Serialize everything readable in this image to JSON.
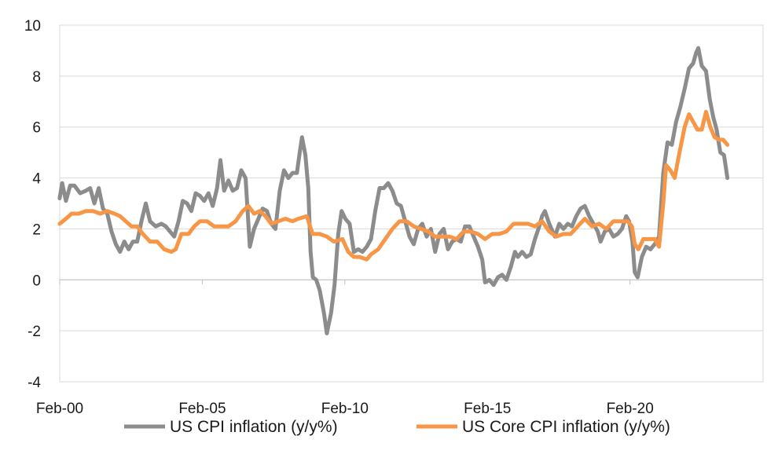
{
  "chart_data": {
    "type": "line",
    "title": "",
    "xlabel": "",
    "ylabel": "",
    "ylim": [
      -4,
      10
    ],
    "yticks": [
      -4,
      -2,
      0,
      2,
      4,
      6,
      8,
      10
    ],
    "ytick_labels": [
      "-4",
      "-2",
      "0",
      "2",
      "4",
      "6",
      "8",
      "10"
    ],
    "xlim": [
      2000.0833,
      2024.75
    ],
    "xticks": [
      {
        "label": "Feb-00",
        "x": 2000.0833
      },
      {
        "label": "Feb-05",
        "x": 2005.0833
      },
      {
        "label": "Feb-10",
        "x": 2010.0833
      },
      {
        "label": "Feb-15",
        "x": 2015.0833
      },
      {
        "label": "Feb-20",
        "x": 2020.0833
      }
    ],
    "grid": "horizontal",
    "legend_position": "bottom",
    "series": [
      {
        "name": "US CPI inflation (y/y%)",
        "color": "#8C8C8C",
        "points": [
          [
            2000.08,
            3.2
          ],
          [
            2000.17,
            3.8
          ],
          [
            2000.3,
            3.1
          ],
          [
            2000.45,
            3.7
          ],
          [
            2000.6,
            3.7
          ],
          [
            2000.8,
            3.4
          ],
          [
            2001.0,
            3.5
          ],
          [
            2001.15,
            3.6
          ],
          [
            2001.3,
            3.0
          ],
          [
            2001.45,
            3.6
          ],
          [
            2001.6,
            2.8
          ],
          [
            2001.75,
            2.6
          ],
          [
            2001.9,
            1.9
          ],
          [
            2002.05,
            1.4
          ],
          [
            2002.2,
            1.1
          ],
          [
            2002.35,
            1.5
          ],
          [
            2002.5,
            1.2
          ],
          [
            2002.65,
            1.5
          ],
          [
            2002.8,
            1.5
          ],
          [
            2002.95,
            2.3
          ],
          [
            2003.1,
            3.0
          ],
          [
            2003.25,
            2.3
          ],
          [
            2003.45,
            2.1
          ],
          [
            2003.65,
            2.2
          ],
          [
            2003.8,
            2.1
          ],
          [
            2003.95,
            1.9
          ],
          [
            2004.1,
            1.7
          ],
          [
            2004.25,
            2.3
          ],
          [
            2004.4,
            3.1
          ],
          [
            2004.55,
            3.0
          ],
          [
            2004.7,
            2.7
          ],
          [
            2004.85,
            3.4
          ],
          [
            2005.0,
            3.3
          ],
          [
            2005.15,
            3.1
          ],
          [
            2005.3,
            3.4
          ],
          [
            2005.45,
            2.9
          ],
          [
            2005.6,
            3.6
          ],
          [
            2005.72,
            4.7
          ],
          [
            2005.85,
            3.5
          ],
          [
            2006.0,
            3.9
          ],
          [
            2006.15,
            3.5
          ],
          [
            2006.3,
            3.6
          ],
          [
            2006.45,
            4.3
          ],
          [
            2006.6,
            4.0
          ],
          [
            2006.75,
            1.3
          ],
          [
            2006.9,
            2.0
          ],
          [
            2007.05,
            2.4
          ],
          [
            2007.2,
            2.8
          ],
          [
            2007.35,
            2.7
          ],
          [
            2007.5,
            2.2
          ],
          [
            2007.65,
            2.0
          ],
          [
            2007.8,
            3.5
          ],
          [
            2007.95,
            4.3
          ],
          [
            2008.1,
            4.0
          ],
          [
            2008.25,
            4.2
          ],
          [
            2008.4,
            4.2
          ],
          [
            2008.5,
            5.0
          ],
          [
            2008.58,
            5.6
          ],
          [
            2008.7,
            4.9
          ],
          [
            2008.8,
            3.6
          ],
          [
            2008.88,
            1.1
          ],
          [
            2008.96,
            0.1
          ],
          [
            2009.08,
            0.0
          ],
          [
            2009.2,
            -0.4
          ],
          [
            2009.35,
            -1.3
          ],
          [
            2009.45,
            -2.1
          ],
          [
            2009.6,
            -1.3
          ],
          [
            2009.72,
            -0.2
          ],
          [
            2009.85,
            1.8
          ],
          [
            2009.97,
            2.7
          ],
          [
            2010.1,
            2.4
          ],
          [
            2010.25,
            2.2
          ],
          [
            2010.4,
            1.1
          ],
          [
            2010.55,
            1.2
          ],
          [
            2010.7,
            1.1
          ],
          [
            2010.85,
            1.3
          ],
          [
            2011.0,
            1.6
          ],
          [
            2011.15,
            2.7
          ],
          [
            2011.3,
            3.6
          ],
          [
            2011.45,
            3.6
          ],
          [
            2011.6,
            3.8
          ],
          [
            2011.75,
            3.5
          ],
          [
            2011.9,
            3.0
          ],
          [
            2012.05,
            2.9
          ],
          [
            2012.2,
            2.3
          ],
          [
            2012.35,
            1.7
          ],
          [
            2012.5,
            1.4
          ],
          [
            2012.65,
            2.0
          ],
          [
            2012.8,
            2.2
          ],
          [
            2012.95,
            1.7
          ],
          [
            2013.1,
            2.0
          ],
          [
            2013.25,
            1.1
          ],
          [
            2013.4,
            1.8
          ],
          [
            2013.55,
            2.0
          ],
          [
            2013.7,
            1.2
          ],
          [
            2013.85,
            1.5
          ],
          [
            2014.0,
            1.6
          ],
          [
            2014.15,
            1.5
          ],
          [
            2014.3,
            2.1
          ],
          [
            2014.45,
            2.1
          ],
          [
            2014.6,
            1.7
          ],
          [
            2014.75,
            1.3
          ],
          [
            2014.9,
            0.8
          ],
          [
            2015.0,
            -0.1
          ],
          [
            2015.15,
            0.0
          ],
          [
            2015.3,
            -0.2
          ],
          [
            2015.45,
            0.1
          ],
          [
            2015.6,
            0.2
          ],
          [
            2015.75,
            0.0
          ],
          [
            2015.9,
            0.5
          ],
          [
            2016.05,
            1.1
          ],
          [
            2016.15,
            0.9
          ],
          [
            2016.3,
            1.1
          ],
          [
            2016.45,
            0.9
          ],
          [
            2016.6,
            1.0
          ],
          [
            2016.75,
            1.6
          ],
          [
            2016.9,
            2.1
          ],
          [
            2017.0,
            2.5
          ],
          [
            2017.1,
            2.7
          ],
          [
            2017.25,
            2.2
          ],
          [
            2017.45,
            1.7
          ],
          [
            2017.6,
            2.2
          ],
          [
            2017.75,
            2.0
          ],
          [
            2017.9,
            2.2
          ],
          [
            2018.05,
            2.1
          ],
          [
            2018.2,
            2.5
          ],
          [
            2018.35,
            2.8
          ],
          [
            2018.5,
            2.9
          ],
          [
            2018.65,
            2.5
          ],
          [
            2018.8,
            2.2
          ],
          [
            2018.95,
            1.9
          ],
          [
            2019.05,
            1.5
          ],
          [
            2019.2,
            1.9
          ],
          [
            2019.35,
            2.0
          ],
          [
            2019.5,
            1.7
          ],
          [
            2019.65,
            1.8
          ],
          [
            2019.8,
            2.0
          ],
          [
            2019.95,
            2.5
          ],
          [
            2020.05,
            2.3
          ],
          [
            2020.17,
            1.5
          ],
          [
            2020.25,
            0.3
          ],
          [
            2020.35,
            0.1
          ],
          [
            2020.5,
            0.9
          ],
          [
            2020.65,
            1.3
          ],
          [
            2020.8,
            1.2
          ],
          [
            2020.95,
            1.4
          ],
          [
            2021.1,
            1.7
          ],
          [
            2021.25,
            4.2
          ],
          [
            2021.4,
            5.4
          ],
          [
            2021.55,
            5.3
          ],
          [
            2021.7,
            6.2
          ],
          [
            2021.85,
            6.8
          ],
          [
            2022.0,
            7.5
          ],
          [
            2022.15,
            8.3
          ],
          [
            2022.3,
            8.5
          ],
          [
            2022.4,
            8.9
          ],
          [
            2022.48,
            9.1
          ],
          [
            2022.6,
            8.4
          ],
          [
            2022.75,
            8.2
          ],
          [
            2022.88,
            7.1
          ],
          [
            2023.0,
            6.4
          ],
          [
            2023.12,
            5.9
          ],
          [
            2023.25,
            5.0
          ],
          [
            2023.38,
            4.9
          ],
          [
            2023.5,
            4.0
          ]
        ]
      },
      {
        "name": "US Core CPI inflation (y/y%)",
        "color": "#F79646",
        "points": [
          [
            2000.08,
            2.2
          ],
          [
            2000.3,
            2.4
          ],
          [
            2000.5,
            2.6
          ],
          [
            2000.75,
            2.6
          ],
          [
            2001.0,
            2.7
          ],
          [
            2001.25,
            2.7
          ],
          [
            2001.5,
            2.6
          ],
          [
            2001.75,
            2.7
          ],
          [
            2002.0,
            2.6
          ],
          [
            2002.2,
            2.5
          ],
          [
            2002.4,
            2.3
          ],
          [
            2002.6,
            2.1
          ],
          [
            2002.8,
            2.1
          ],
          [
            2003.0,
            1.8
          ],
          [
            2003.25,
            1.5
          ],
          [
            2003.5,
            1.5
          ],
          [
            2003.75,
            1.2
          ],
          [
            2004.0,
            1.1
          ],
          [
            2004.15,
            1.2
          ],
          [
            2004.35,
            1.8
          ],
          [
            2004.6,
            1.8
          ],
          [
            2004.8,
            2.1
          ],
          [
            2005.0,
            2.3
          ],
          [
            2005.25,
            2.3
          ],
          [
            2005.5,
            2.1
          ],
          [
            2005.75,
            2.1
          ],
          [
            2006.0,
            2.1
          ],
          [
            2006.25,
            2.3
          ],
          [
            2006.5,
            2.7
          ],
          [
            2006.7,
            2.9
          ],
          [
            2006.9,
            2.6
          ],
          [
            2007.1,
            2.7
          ],
          [
            2007.3,
            2.5
          ],
          [
            2007.5,
            2.2
          ],
          [
            2007.75,
            2.3
          ],
          [
            2008.0,
            2.4
          ],
          [
            2008.25,
            2.3
          ],
          [
            2008.45,
            2.4
          ],
          [
            2008.75,
            2.5
          ],
          [
            2008.95,
            1.8
          ],
          [
            2009.2,
            1.8
          ],
          [
            2009.45,
            1.7
          ],
          [
            2009.7,
            1.5
          ],
          [
            2010.0,
            1.6
          ],
          [
            2010.2,
            1.1
          ],
          [
            2010.4,
            0.9
          ],
          [
            2010.6,
            0.9
          ],
          [
            2010.85,
            0.8
          ],
          [
            2011.0,
            1.0
          ],
          [
            2011.25,
            1.2
          ],
          [
            2011.5,
            1.6
          ],
          [
            2011.75,
            2.0
          ],
          [
            2012.0,
            2.3
          ],
          [
            2012.25,
            2.3
          ],
          [
            2012.5,
            2.1
          ],
          [
            2012.75,
            2.0
          ],
          [
            2013.0,
            1.9
          ],
          [
            2013.25,
            1.7
          ],
          [
            2013.5,
            1.7
          ],
          [
            2013.75,
            1.7
          ],
          [
            2014.0,
            1.6
          ],
          [
            2014.25,
            1.9
          ],
          [
            2014.5,
            1.9
          ],
          [
            2014.75,
            1.8
          ],
          [
            2015.0,
            1.6
          ],
          [
            2015.25,
            1.8
          ],
          [
            2015.5,
            1.8
          ],
          [
            2015.75,
            1.9
          ],
          [
            2016.0,
            2.2
          ],
          [
            2016.25,
            2.2
          ],
          [
            2016.5,
            2.2
          ],
          [
            2016.75,
            2.1
          ],
          [
            2017.0,
            2.3
          ],
          [
            2017.25,
            1.9
          ],
          [
            2017.5,
            1.7
          ],
          [
            2017.75,
            1.8
          ],
          [
            2018.0,
            1.8
          ],
          [
            2018.25,
            2.1
          ],
          [
            2018.5,
            2.4
          ],
          [
            2018.75,
            2.1
          ],
          [
            2019.0,
            2.2
          ],
          [
            2019.25,
            2.0
          ],
          [
            2019.5,
            2.3
          ],
          [
            2019.75,
            2.3
          ],
          [
            2020.0,
            2.3
          ],
          [
            2020.15,
            2.1
          ],
          [
            2020.25,
            1.4
          ],
          [
            2020.38,
            1.2
          ],
          [
            2020.55,
            1.6
          ],
          [
            2020.75,
            1.6
          ],
          [
            2020.95,
            1.6
          ],
          [
            2021.1,
            1.3
          ],
          [
            2021.25,
            3.0
          ],
          [
            2021.35,
            4.5
          ],
          [
            2021.5,
            4.3
          ],
          [
            2021.65,
            4.0
          ],
          [
            2021.8,
            4.9
          ],
          [
            2022.0,
            6.0
          ],
          [
            2022.15,
            6.5
          ],
          [
            2022.3,
            6.2
          ],
          [
            2022.45,
            5.9
          ],
          [
            2022.6,
            5.9
          ],
          [
            2022.75,
            6.6
          ],
          [
            2022.9,
            6.0
          ],
          [
            2023.05,
            5.6
          ],
          [
            2023.2,
            5.5
          ],
          [
            2023.35,
            5.5
          ],
          [
            2023.5,
            5.3
          ]
        ]
      }
    ]
  }
}
